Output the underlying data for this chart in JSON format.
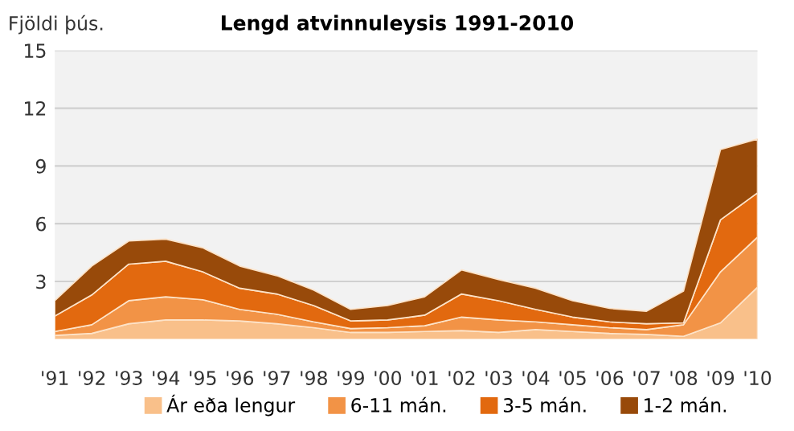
{
  "chart_data": {
    "type": "area",
    "stacked": true,
    "title": "Lengd atvinnuleysis 1991-2010",
    "ylabel": "Fjöldi þús.",
    "categories": [
      "'91",
      "'92",
      "'93",
      "'94",
      "'95",
      "'96",
      "'97",
      "'98",
      "'99",
      "'00",
      "'01",
      "'02",
      "'03",
      "'04",
      "'05",
      "'06",
      "'07",
      "'08",
      "'09",
      "'10"
    ],
    "series": [
      {
        "name": "Ár eða lengur",
        "color": "#f9c08a",
        "values": [
          0.2,
          0.3,
          0.8,
          1.0,
          1.0,
          0.95,
          0.8,
          0.6,
          0.35,
          0.35,
          0.4,
          0.45,
          0.35,
          0.5,
          0.4,
          0.3,
          0.25,
          0.15,
          0.85,
          2.7
        ]
      },
      {
        "name": "6-11 mán.",
        "color": "#f29346",
        "values": [
          0.2,
          0.45,
          1.2,
          1.2,
          1.05,
          0.6,
          0.5,
          0.3,
          0.2,
          0.25,
          0.3,
          0.7,
          0.65,
          0.4,
          0.35,
          0.3,
          0.25,
          0.6,
          2.65,
          2.6
        ]
      },
      {
        "name": "3-5 mán.",
        "color": "#e2690f",
        "values": [
          0.8,
          1.55,
          1.9,
          1.85,
          1.45,
          1.1,
          1.05,
          0.85,
          0.4,
          0.4,
          0.55,
          1.2,
          1.0,
          0.65,
          0.4,
          0.3,
          0.3,
          0.1,
          2.7,
          2.3
        ]
      },
      {
        "name": "1-2 mán.",
        "color": "#984a0a",
        "values": [
          0.8,
          1.5,
          1.2,
          1.15,
          1.25,
          1.15,
          0.95,
          0.8,
          0.6,
          0.75,
          0.95,
          1.25,
          1.1,
          1.1,
          0.85,
          0.7,
          0.65,
          1.65,
          3.65,
          2.8
        ]
      }
    ],
    "ylim": [
      0,
      15
    ],
    "yticks": [
      3,
      6,
      9,
      12,
      15
    ],
    "grid": "y",
    "legend": "bottom"
  }
}
